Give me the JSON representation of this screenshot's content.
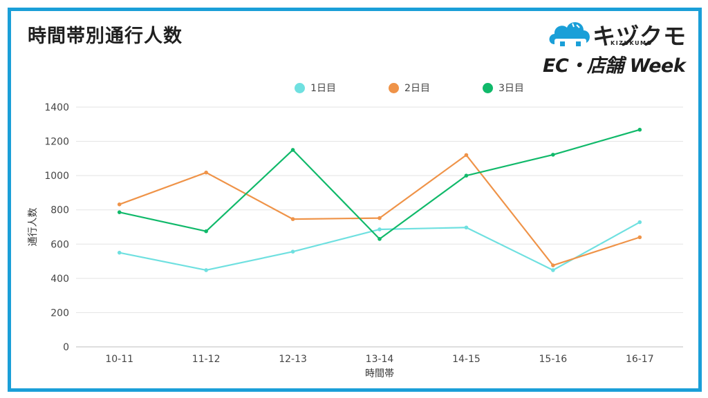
{
  "page": {
    "title": "時間帯別通行人数"
  },
  "logo": {
    "name": "キヅクモ",
    "romaji": "KIZUKUMO",
    "event": "EC・店舗 Week",
    "cloud_color": "#1a9fd8"
  },
  "frame_color": "#1a9fd8",
  "chart_data": {
    "type": "line",
    "title": "",
    "xlabel": "時間帯",
    "ylabel": "通行人数",
    "categories": [
      "10-11",
      "11-12",
      "12-13",
      "13-14",
      "14-15",
      "15-16",
      "16-17"
    ],
    "ylim": [
      0,
      1400
    ],
    "yticks": [
      0,
      200,
      400,
      600,
      800,
      1000,
      1200,
      1400
    ],
    "grid": true,
    "legend_position": "top",
    "series": [
      {
        "name": "1日目",
        "color": "#6fe0e0",
        "values": [
          550,
          448,
          556,
          686,
          697,
          448,
          728
        ]
      },
      {
        "name": "2日目",
        "color": "#ef9348",
        "values": [
          832,
          1018,
          746,
          752,
          1120,
          476,
          640
        ]
      },
      {
        "name": "3日目",
        "color": "#10b96a",
        "values": [
          786,
          675,
          1150,
          630,
          1000,
          1122,
          1268
        ]
      }
    ]
  }
}
